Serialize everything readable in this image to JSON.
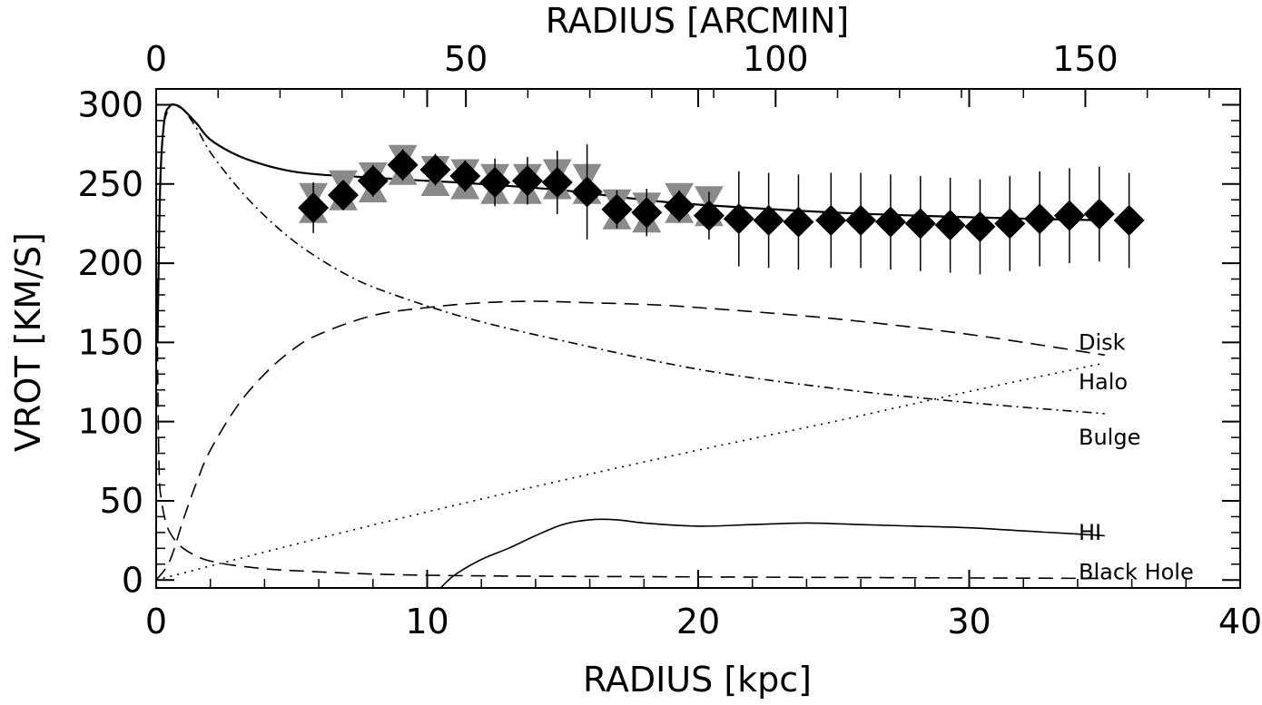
{
  "chart_data": {
    "type": "line",
    "title": "",
    "xlabel": "RADIUS [kpc]",
    "x2label": "RADIUS [ARCMIN]",
    "ylabel": "VROT [KM/S]",
    "xlim": [
      0,
      40
    ],
    "ylim": [
      -5,
      310
    ],
    "x2lim": [
      0,
      175
    ],
    "x_ticks": [
      0,
      10,
      20,
      30,
      40
    ],
    "x2_ticks": [
      0,
      50,
      100,
      150
    ],
    "y_ticks": [
      0,
      50,
      100,
      150,
      200,
      250,
      300
    ],
    "grid": false,
    "legend": "none",
    "curve_labels": [
      {
        "text": "Disk",
        "series": "disk"
      },
      {
        "text": "Halo",
        "series": "halo"
      },
      {
        "text": "Bulge",
        "series": "bulge"
      },
      {
        "text": "HI",
        "series": "hi"
      },
      {
        "text": "Black Hole",
        "series": "black_hole"
      }
    ],
    "series": [
      {
        "key": "total",
        "style": "solid",
        "x": [
          0.05,
          0.15,
          0.3,
          0.5,
          0.7,
          1.0,
          1.5,
          2,
          3,
          4,
          5,
          6,
          7,
          8,
          10,
          12,
          15,
          18,
          20,
          25,
          30,
          35
        ],
        "y": [
          150,
          250,
          290,
          299,
          300,
          297,
          288,
          278,
          268,
          262,
          258,
          256,
          255,
          254,
          252,
          250,
          246,
          240,
          237,
          232,
          229,
          227
        ]
      },
      {
        "key": "disk",
        "style": "long-dash",
        "x": [
          0,
          0.5,
          1,
          1.5,
          2,
          3,
          4,
          5,
          6,
          8,
          10,
          12,
          14,
          16,
          18,
          20,
          25,
          30,
          35
        ],
        "y": [
          0,
          12,
          38,
          62,
          82,
          110,
          130,
          145,
          155,
          167,
          172,
          175,
          176,
          175,
          174,
          172,
          165,
          155,
          142
        ]
      },
      {
        "key": "halo",
        "style": "dotted",
        "x": [
          0,
          5,
          10,
          15,
          20,
          25,
          30,
          35
        ],
        "y": [
          0,
          22,
          43,
          63,
          82,
          100,
          119,
          137
        ]
      },
      {
        "key": "bulge",
        "style": "dash-dot",
        "x": [
          0.3,
          0.5,
          0.7,
          1,
          1.5,
          2,
          3,
          4,
          5,
          6,
          7,
          8,
          10,
          12,
          15,
          20,
          25,
          30,
          35
        ],
        "y": [
          290,
          299,
          300,
          297,
          285,
          270,
          248,
          230,
          215,
          203,
          193,
          185,
          173,
          163,
          151,
          133,
          121,
          112,
          105
        ]
      },
      {
        "key": "hi",
        "style": "solid",
        "x": [
          10.5,
          11,
          12,
          13,
          14,
          15,
          16,
          17,
          18,
          20,
          22,
          24,
          26,
          28,
          30,
          32,
          34,
          35
        ],
        "y": [
          -5,
          3,
          13,
          20,
          28,
          35,
          38,
          38,
          36,
          34,
          35,
          36,
          35,
          34,
          33,
          31,
          29,
          28
        ]
      },
      {
        "key": "black_hole",
        "style": "long-dash",
        "x": [
          0.02,
          0.1,
          0.2,
          0.4,
          0.7,
          1,
          1.5,
          2,
          3,
          5,
          10,
          20,
          35
        ],
        "y": [
          190,
          75,
          50,
          34,
          25,
          20,
          15,
          12,
          9,
          6,
          3,
          2,
          1
        ]
      }
    ],
    "observed": {
      "marker": "diamond",
      "points": [
        {
          "x": 5.8,
          "y": 235,
          "err": 16
        },
        {
          "x": 6.9,
          "y": 243,
          "err": 8
        },
        {
          "x": 8.0,
          "y": 252,
          "err": 10
        },
        {
          "x": 9.1,
          "y": 262,
          "err": 10
        },
        {
          "x": 10.3,
          "y": 259,
          "err": 10
        },
        {
          "x": 11.4,
          "y": 255,
          "err": 10
        },
        {
          "x": 12.5,
          "y": 251,
          "err": 15
        },
        {
          "x": 13.7,
          "y": 252,
          "err": 15
        },
        {
          "x": 14.8,
          "y": 251,
          "err": 20
        },
        {
          "x": 15.9,
          "y": 245,
          "err": 30
        },
        {
          "x": 17.0,
          "y": 234,
          "err": 12
        },
        {
          "x": 18.1,
          "y": 232,
          "err": 15
        },
        {
          "x": 19.3,
          "y": 236,
          "err": 10
        },
        {
          "x": 20.4,
          "y": 230,
          "err": 15
        },
        {
          "x": 21.5,
          "y": 228,
          "err": 30
        },
        {
          "x": 22.6,
          "y": 227,
          "err": 30
        },
        {
          "x": 23.7,
          "y": 226,
          "err": 30
        },
        {
          "x": 24.9,
          "y": 227,
          "err": 30
        },
        {
          "x": 26.0,
          "y": 227,
          "err": 30
        },
        {
          "x": 27.1,
          "y": 226,
          "err": 30
        },
        {
          "x": 28.2,
          "y": 225,
          "err": 30
        },
        {
          "x": 29.3,
          "y": 224,
          "err": 30
        },
        {
          "x": 30.4,
          "y": 223,
          "err": 30
        },
        {
          "x": 31.5,
          "y": 225,
          "err": 30
        },
        {
          "x": 32.6,
          "y": 228,
          "err": 30
        },
        {
          "x": 33.7,
          "y": 230,
          "err": 30
        },
        {
          "x": 34.8,
          "y": 231,
          "err": 30
        },
        {
          "x": 35.9,
          "y": 227,
          "err": 30
        }
      ]
    },
    "observed_grey": {
      "marker": "triangles",
      "points": [
        {
          "x": 5.8,
          "y": 238
        },
        {
          "x": 6.9,
          "y": 246
        },
        {
          "x": 8.0,
          "y": 251
        },
        {
          "x": 9.1,
          "y": 262
        },
        {
          "x": 10.3,
          "y": 255
        },
        {
          "x": 11.4,
          "y": 253
        },
        {
          "x": 12.5,
          "y": 250
        },
        {
          "x": 13.7,
          "y": 250
        },
        {
          "x": 14.8,
          "y": 253
        },
        {
          "x": 15.9,
          "y": 250
        },
        {
          "x": 17.0,
          "y": 234
        },
        {
          "x": 18.1,
          "y": 232
        },
        {
          "x": 19.3,
          "y": 238
        },
        {
          "x": 20.4,
          "y": 236
        }
      ]
    },
    "colors": {
      "axis": "#000000",
      "data": "#000000",
      "grey_data": "#8a8a8a"
    }
  }
}
